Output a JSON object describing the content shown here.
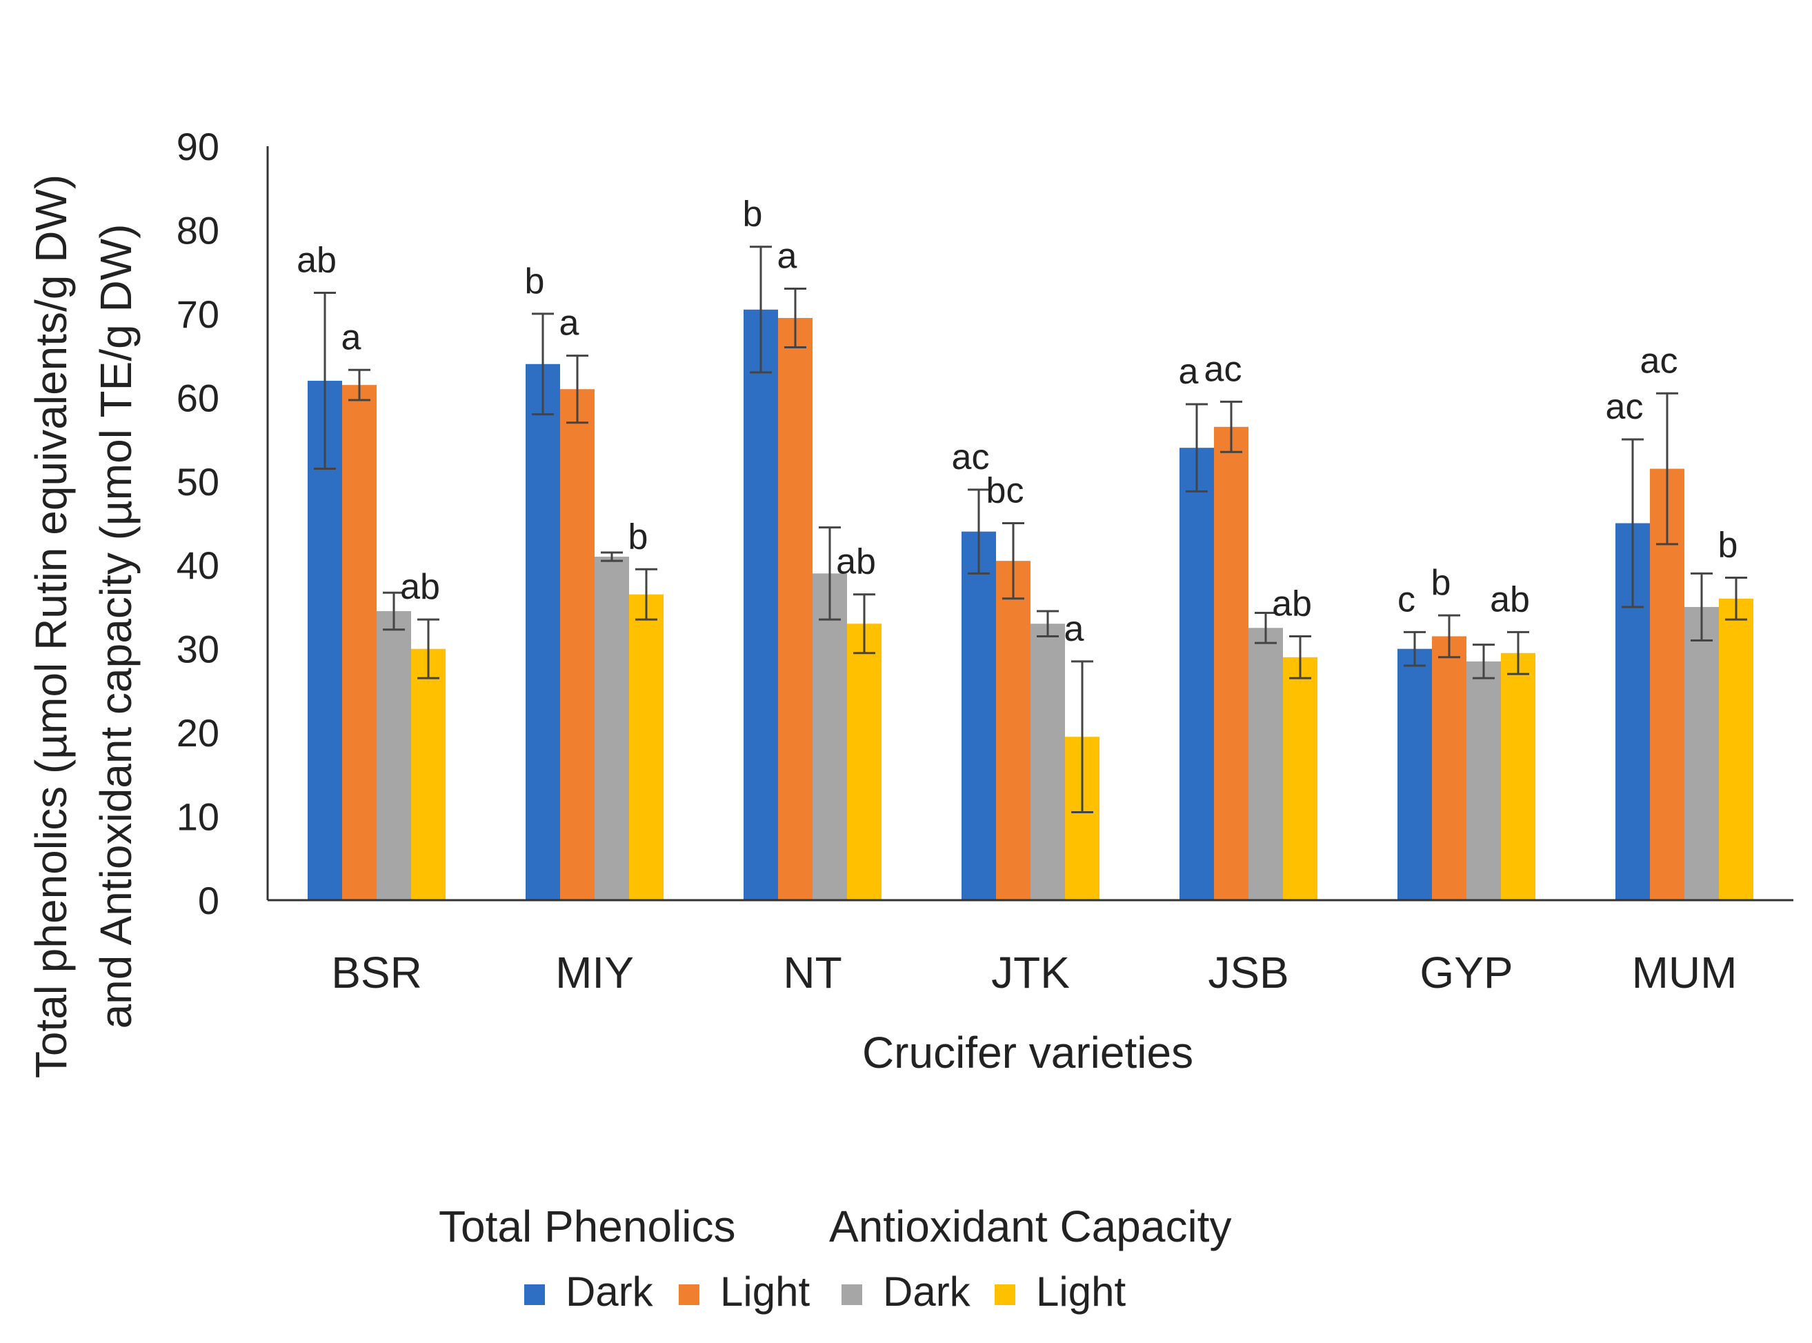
{
  "chart_data": {
    "type": "bar",
    "title": "",
    "xlabel": "Crucifer varieties",
    "ylabel_line1": "Total phenolics (µmol Rutin equivalents/g DW)",
    "ylabel_line2": "and Antioxidant capacity (µmol TE/g DW)",
    "ylim": [
      0,
      90
    ],
    "yticks": [
      0,
      10,
      20,
      30,
      40,
      50,
      60,
      70,
      80,
      90
    ],
    "grid": false,
    "categories": [
      "BSR",
      "MIY",
      "NT",
      "JTK",
      "JSB",
      "GYP",
      "MUM"
    ],
    "series": [
      {
        "name": "Dark",
        "group": "Total Phenolics",
        "color": "#2e6fc4",
        "values": [
          62,
          64,
          70.5,
          44,
          54,
          30,
          45
        ],
        "errors": [
          10.5,
          6,
          7.5,
          5,
          5.2,
          2,
          10
        ],
        "letters": [
          "ab",
          "b",
          "b",
          "ac",
          "a",
          "c",
          "ac"
        ]
      },
      {
        "name": "Light",
        "group": "Total Phenolics",
        "color": "#f07f2f",
        "values": [
          61.5,
          61,
          69.5,
          40.5,
          56.5,
          31.5,
          51.5
        ],
        "errors": [
          1.8,
          4,
          3.5,
          4.5,
          3,
          2.5,
          9
        ],
        "letters": [
          "a",
          "a",
          "a",
          "bc",
          "ac",
          "b",
          "ac"
        ]
      },
      {
        "name": "Dark",
        "group": "Antioxidant Capacity",
        "color": "#a6a6a6",
        "values": [
          34.5,
          41,
          39,
          33,
          32.5,
          28.5,
          35
        ],
        "errors": [
          2.2,
          0.5,
          5.5,
          1.5,
          1.8,
          2,
          4
        ],
        "letters": [
          "",
          "",
          "",
          "",
          "",
          "",
          ""
        ]
      },
      {
        "name": "Light",
        "group": "Antioxidant Capacity",
        "color": "#ffc000",
        "values": [
          30,
          36.5,
          33,
          19.5,
          29,
          29.5,
          36
        ],
        "errors": [
          3.5,
          3,
          3.5,
          9,
          2.5,
          2.5,
          2.5
        ],
        "letters": [
          "ab",
          "b",
          "ab",
          "a",
          "ab",
          "ab",
          "b"
        ]
      }
    ],
    "legend": {
      "placement": "bottom-center",
      "groups": [
        "Total Phenolics",
        "Antioxidant Capacity"
      ],
      "items": [
        "Dark",
        "Light",
        "Dark",
        "Light"
      ]
    }
  }
}
